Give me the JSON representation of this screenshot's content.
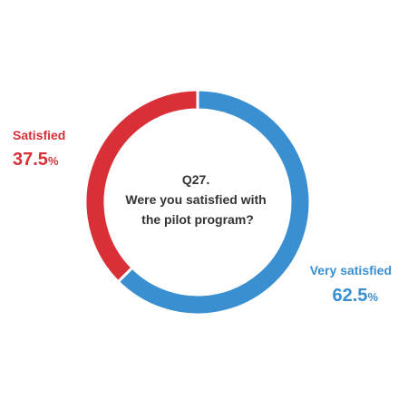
{
  "chart_data": {
    "type": "pie",
    "variant": "donut",
    "center_text": [
      "Q27.",
      "Were you satisfied with",
      "the pilot program?"
    ],
    "slices": [
      {
        "label": "Very satisfied",
        "value": 62.5,
        "display": "62.5",
        "unit": "%",
        "color": "#3a8fd1"
      },
      {
        "label": "Satisfied",
        "value": 37.5,
        "display": "37.5",
        "unit": "%",
        "color": "#d93038"
      }
    ]
  }
}
